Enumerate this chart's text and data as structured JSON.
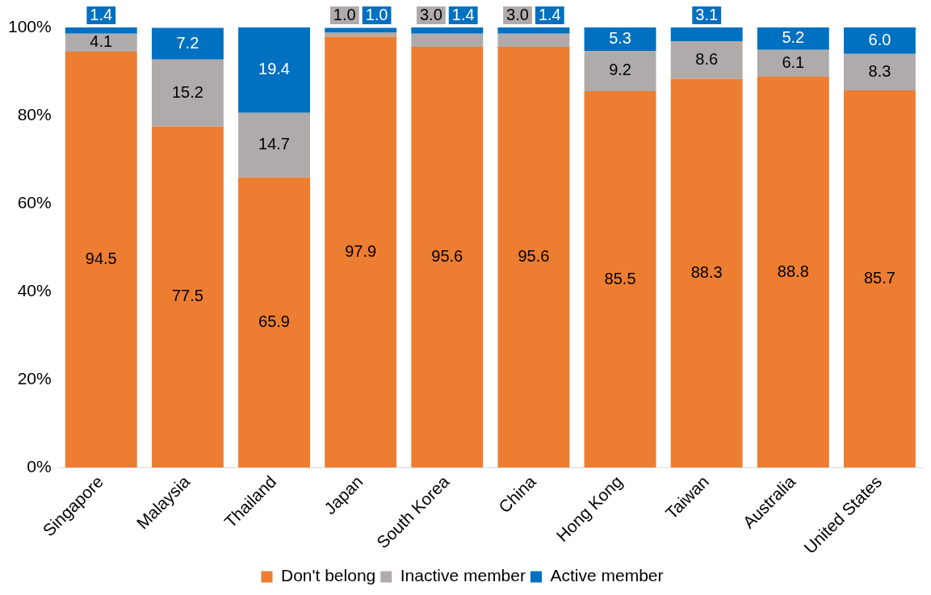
{
  "chart_data": {
    "type": "bar",
    "stacked": true,
    "categories": [
      "Singapore",
      "Malaysia",
      "Thailand",
      "Japan",
      "South Korea",
      "China",
      "Hong Kong",
      "Taiwan",
      "Australia",
      "United States"
    ],
    "series": [
      {
        "name": "Don't belong",
        "color": "#ed7d31",
        "values": [
          94.5,
          77.5,
          65.9,
          97.9,
          95.6,
          95.6,
          85.5,
          88.3,
          88.8,
          85.7
        ],
        "value_labels": [
          "94.5",
          "77.5",
          "65.9",
          "97.9",
          "95.6",
          "95.6",
          "85.5",
          "88.3",
          "88.8",
          "85.7"
        ]
      },
      {
        "name": "Inactive member",
        "color": "#afabab",
        "values": [
          4.1,
          15.2,
          14.7,
          1.0,
          3.0,
          3.0,
          9.2,
          8.6,
          6.1,
          8.3
        ],
        "value_labels": [
          "4.1",
          "15.2",
          "14.7",
          "1.0",
          "3.0",
          "3.0",
          "9.2",
          "8.6",
          "6.1",
          "8.3"
        ]
      },
      {
        "name": "Active member",
        "color": "#0070c0",
        "values": [
          1.4,
          7.2,
          19.4,
          1.0,
          1.4,
          1.4,
          5.3,
          3.1,
          5.2,
          6.0
        ],
        "value_labels": [
          "1.4",
          "7.2",
          "19.4",
          "1.0",
          "1.4",
          "1.4",
          "5.3",
          "3.1",
          "5.2",
          "6.0"
        ]
      }
    ],
    "ylim": [
      0,
      100
    ],
    "yticks": [
      {
        "value": 0,
        "label": "0%"
      },
      {
        "value": 20,
        "label": "20%"
      },
      {
        "value": 40,
        "label": "40%"
      },
      {
        "value": 60,
        "label": "60%"
      },
      {
        "value": 80,
        "label": "80%"
      },
      {
        "value": 100,
        "label": "100%"
      }
    ],
    "grid": false,
    "legend": "bottom"
  }
}
